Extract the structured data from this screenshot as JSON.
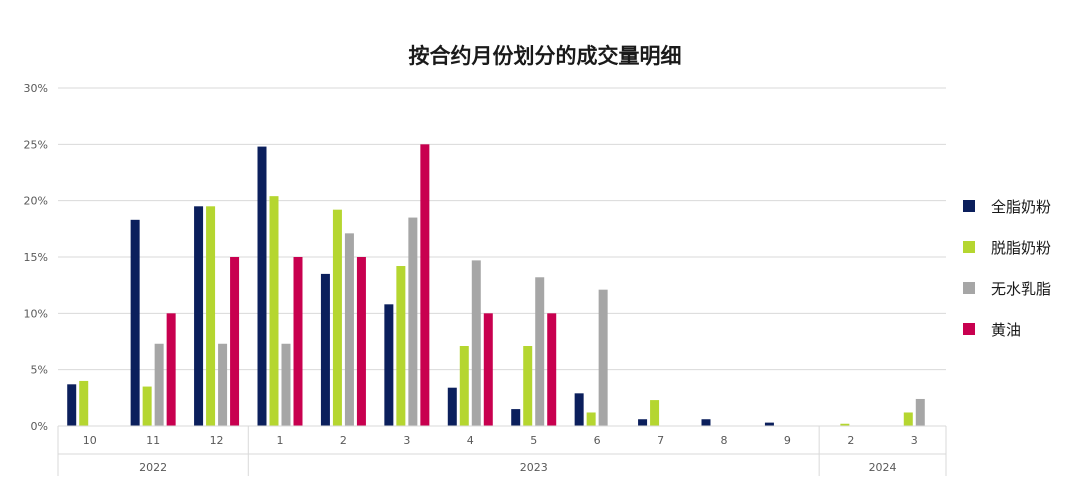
{
  "chart_data": {
    "type": "bar",
    "title": "按合约月份划分的成交量明细",
    "xlabel": "",
    "ylabel": "",
    "ylim": [
      0,
      30
    ],
    "y_ticks": [
      "0%",
      "5%",
      "10%",
      "15%",
      "20%",
      "25%",
      "30%"
    ],
    "y_tick_values": [
      0,
      5,
      10,
      15,
      20,
      25,
      30
    ],
    "grid": true,
    "legend_position": "right",
    "categories": [
      "10",
      "11",
      "12",
      "1",
      "2",
      "3",
      "4",
      "5",
      "6",
      "7",
      "8",
      "9",
      "2",
      "3"
    ],
    "category_groups": [
      {
        "label": "2022",
        "count": 3
      },
      {
        "label": "2023",
        "count": 9
      },
      {
        "label": "2024",
        "count": 2
      }
    ],
    "series": [
      {
        "name": "全脂奶粉",
        "color": "#0b1f5c",
        "values": [
          3.7,
          18.3,
          19.5,
          24.8,
          13.5,
          10.8,
          3.4,
          1.5,
          2.9,
          0.6,
          0.6,
          0.3,
          0,
          0
        ]
      },
      {
        "name": "脱脂奶粉",
        "color": "#b5d630",
        "values": [
          4.0,
          3.5,
          19.5,
          20.4,
          19.2,
          14.2,
          7.1,
          7.1,
          1.2,
          2.3,
          0,
          0,
          0.2,
          1.2
        ]
      },
      {
        "name": "无水乳脂",
        "color": "#a6a6a6",
        "values": [
          0,
          7.3,
          7.3,
          7.3,
          17.1,
          18.5,
          14.7,
          13.2,
          12.1,
          0,
          0,
          0,
          0,
          2.4
        ]
      },
      {
        "name": "黄油",
        "color": "#c8004f",
        "values": [
          0,
          10.0,
          15.0,
          15.0,
          15.0,
          25.0,
          10.0,
          10.0,
          0,
          0,
          0,
          0,
          0,
          0
        ]
      }
    ]
  }
}
